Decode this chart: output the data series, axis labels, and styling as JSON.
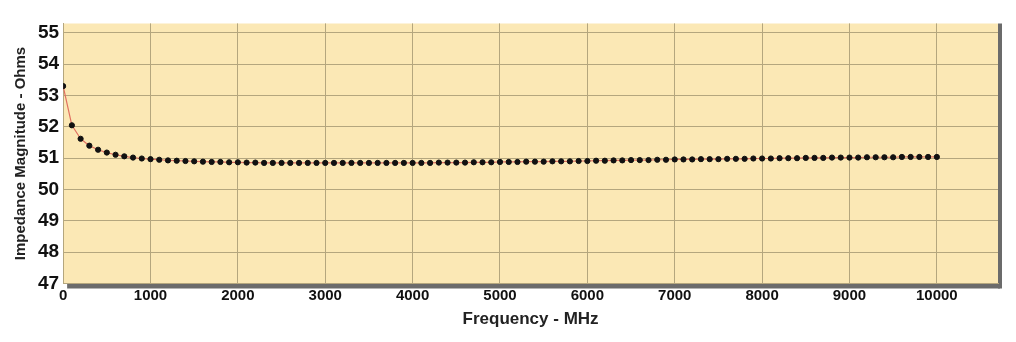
{
  "chart_data": {
    "type": "line",
    "xlabel": "Frequency - MHz",
    "ylabel": "Impedance Magnitude - Ohms",
    "x": [
      0,
      100,
      200,
      300,
      400,
      500,
      600,
      700,
      800,
      900,
      1000,
      1100,
      1200,
      1300,
      1400,
      1500,
      1600,
      1700,
      1800,
      1900,
      2000,
      2100,
      2200,
      2300,
      2400,
      2500,
      2600,
      2700,
      2800,
      2900,
      3000,
      3100,
      3200,
      3300,
      3400,
      3500,
      3600,
      3700,
      3800,
      3900,
      4000,
      4100,
      4200,
      4300,
      4400,
      4500,
      4600,
      4700,
      4800,
      4900,
      5000,
      5100,
      5200,
      5300,
      5400,
      5500,
      5600,
      5700,
      5800,
      5900,
      6000,
      6100,
      6200,
      6300,
      6400,
      6500,
      6600,
      6700,
      6800,
      6900,
      7000,
      7100,
      7200,
      7300,
      7400,
      7500,
      7600,
      7700,
      7800,
      7900,
      8000,
      8100,
      8200,
      8300,
      8400,
      8500,
      8600,
      8700,
      8800,
      8900,
      9000,
      9100,
      9200,
      9300,
      9400,
      9500,
      9600,
      9700,
      9800,
      9900,
      10000
    ],
    "series": [
      {
        "color": "#e07060",
        "values": [
          53.3,
          52.05,
          51.62,
          51.4,
          51.27,
          51.18,
          51.11,
          51.06,
          51.02,
          50.99,
          50.97,
          50.95,
          50.93,
          50.92,
          50.91,
          50.9,
          50.89,
          50.88,
          50.88,
          50.87,
          50.87,
          50.86,
          50.86,
          50.85,
          50.85,
          50.85,
          50.85,
          50.85,
          50.85,
          50.85,
          50.85,
          50.85,
          50.85,
          50.85,
          50.85,
          50.85,
          50.85,
          50.85,
          50.85,
          50.85,
          50.85,
          50.85,
          50.85,
          50.86,
          50.86,
          50.86,
          50.86,
          50.87,
          50.87,
          50.87,
          50.88,
          50.88,
          50.88,
          50.89,
          50.89,
          50.89,
          50.9,
          50.9,
          50.9,
          50.91,
          50.91,
          50.92,
          50.92,
          50.93,
          50.93,
          50.94,
          50.94,
          50.94,
          50.95,
          50.95,
          50.96,
          50.96,
          50.96,
          50.97,
          50.97,
          50.97,
          50.98,
          50.98,
          50.98,
          50.99,
          50.99,
          50.99,
          51.0,
          51.0,
          51.0,
          51.01,
          51.01,
          51.01,
          51.02,
          51.02,
          51.02,
          51.02,
          51.03,
          51.03,
          51.03,
          51.03,
          51.04,
          51.04,
          51.04,
          51.04,
          51.04
        ]
      }
    ],
    "xlim": [
      0,
      10700
    ],
    "xticks": [
      0,
      1000,
      2000,
      3000,
      4000,
      5000,
      6000,
      7000,
      8000,
      9000,
      10000
    ],
    "ylim": [
      47,
      55.3
    ],
    "yticks": [
      47,
      48,
      49,
      50,
      51,
      52,
      53,
      54,
      55
    ],
    "grid": true,
    "legend": false,
    "marker": "circle",
    "line_style": "solid"
  }
}
